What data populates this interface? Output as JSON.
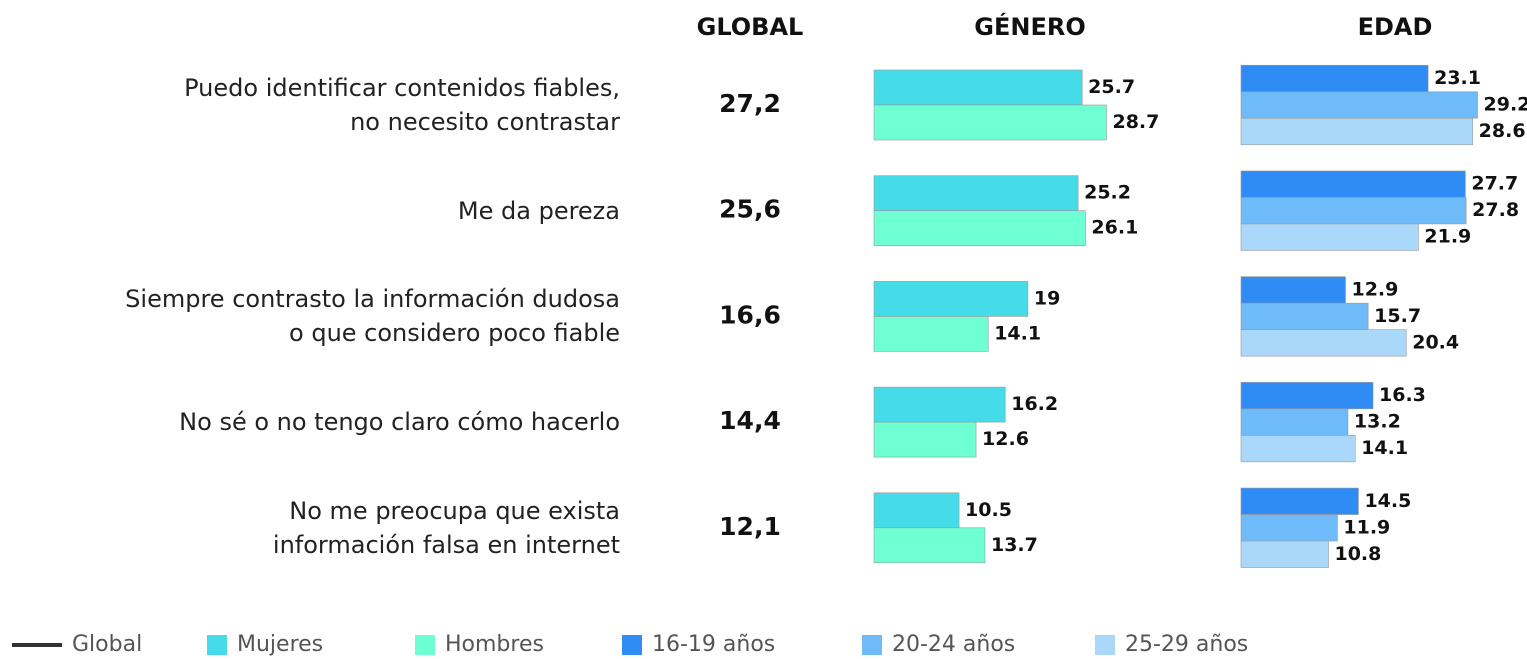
{
  "chart_data": [
    {
      "type": "text",
      "title": "GLOBAL",
      "categories": [
        "Puedo identificar contenidos fiables,\nno necesito contrastar",
        "Me da pereza",
        "Siempre contrasto la información dudosa\no que considero poco fiable",
        "No sé o no tengo claro cómo hacerlo",
        "No me preocupa que exista\ninformación falsa en internet"
      ],
      "series": [
        {
          "name": "Global",
          "color": "#333333",
          "values": [
            27.2,
            25.6,
            16.6,
            14.4,
            12.1
          ],
          "value_labels": [
            "27,2",
            "25,6",
            "16,6",
            "14,4",
            "12,1"
          ]
        }
      ]
    },
    {
      "type": "bar",
      "title": "GÉNERO",
      "xlim": [
        0,
        30
      ],
      "series": [
        {
          "name": "Mujeres",
          "color": "#45dbe9",
          "values": [
            25.7,
            25.2,
            19,
            16.2,
            10.5
          ]
        },
        {
          "name": "Hombres",
          "color": "#6effd2",
          "values": [
            28.7,
            26.1,
            14.1,
            12.6,
            13.7
          ]
        }
      ]
    },
    {
      "type": "bar",
      "title": "EDAD",
      "xlim": [
        0,
        30
      ],
      "series": [
        {
          "name": "16-19 años",
          "color": "#2f8cf5",
          "values": [
            23.1,
            27.7,
            12.9,
            16.3,
            14.5
          ]
        },
        {
          "name": "20-24 años",
          "color": "#6fbaf8",
          "values": [
            29.2,
            27.8,
            15.7,
            13.2,
            11.9
          ]
        },
        {
          "name": "25-29 años",
          "color": "#a9d8fb",
          "values": [
            28.6,
            21.9,
            20.4,
            14.1,
            10.8
          ]
        }
      ]
    }
  ]
}
